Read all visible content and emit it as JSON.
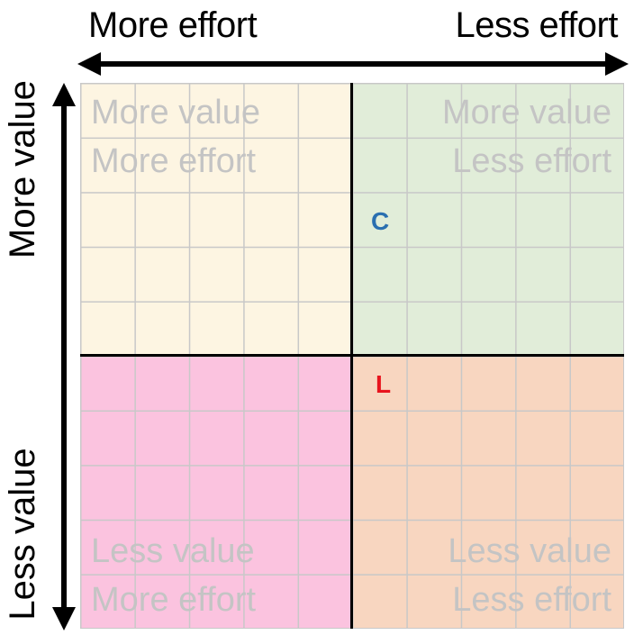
{
  "top_axis": {
    "left_label": "More effort",
    "right_label": "Less effort"
  },
  "side_axis": {
    "top_label": "More value",
    "bottom_label": "Less value"
  },
  "quadrants": {
    "top_left": {
      "line1": "More value",
      "line2": "More effort",
      "color": "#fdf5e2"
    },
    "top_right": {
      "line1": "More value",
      "line2": "Less effort",
      "color": "#e1edd9"
    },
    "bottom_left": {
      "line1": "Less value",
      "line2": "More effort",
      "color": "#fbc3df"
    },
    "bottom_right": {
      "line1": "Less value",
      "line2": "Less effort",
      "color": "#f8d6c0"
    }
  },
  "markers": [
    {
      "label": "C",
      "color": "#2a6fb0"
    },
    {
      "label": "L",
      "color": "#e8141e"
    }
  ]
}
